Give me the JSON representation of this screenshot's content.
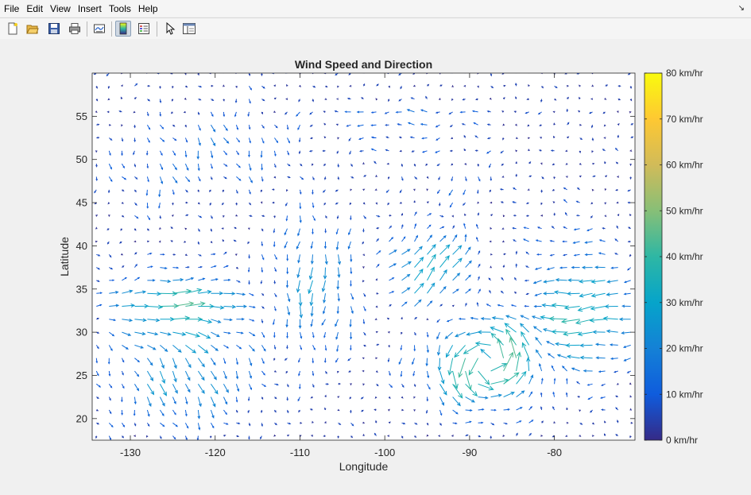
{
  "menubar": {
    "items": [
      "File",
      "Edit",
      "View",
      "Insert",
      "Tools",
      "Help"
    ],
    "dock_icon": "undock-arrow-icon"
  },
  "toolbar": {
    "buttons": [
      {
        "name": "new-figure-button",
        "icon": "new-file-icon"
      },
      {
        "name": "open-file-button",
        "icon": "folder-open-icon"
      },
      {
        "name": "save-figure-button",
        "icon": "save-icon"
      },
      {
        "name": "print-figure-button",
        "icon": "print-icon"
      },
      {
        "name": "link-plot-button",
        "icon": "link-plot-icon"
      },
      {
        "name": "insert-colorbar-button",
        "icon": "colorbar-icon"
      },
      {
        "name": "insert-legend-button",
        "icon": "legend-icon"
      },
      {
        "name": "edit-plot-button",
        "icon": "pointer-icon"
      },
      {
        "name": "property-inspector-button",
        "icon": "property-inspector-icon"
      }
    ]
  },
  "chart_data": {
    "type": "quiver",
    "title": "Wind Speed and Direction",
    "xlabel": "Longitude",
    "ylabel": "Latitude",
    "xlim": [
      -134.5,
      -70.5
    ],
    "ylim": [
      17.5,
      60
    ],
    "xticks": [
      -130,
      -120,
      -110,
      -100,
      -90,
      -80
    ],
    "yticks": [
      20,
      25,
      30,
      35,
      40,
      45,
      50,
      55
    ],
    "grid": false,
    "colorbar": {
      "min": 0,
      "max": 80,
      "unit": "km/hr",
      "ticks": [
        0,
        10,
        20,
        30,
        40,
        50,
        60,
        70,
        80
      ],
      "tick_labels": [
        "0 km/hr",
        "10 km/hr",
        "20 km/hr",
        "30 km/hr",
        "40 km/hr",
        "50 km/hr",
        "60 km/hr",
        "70 km/hr",
        "80 km/hr"
      ],
      "colormap": "parula",
      "colors": [
        "#352a87",
        "#0f5cdd",
        "#1481d6",
        "#06a4ca",
        "#2eb7a4",
        "#87bf77",
        "#d1bb59",
        "#fec832",
        "#f9fb0e"
      ]
    },
    "grid_spacing_deg": 1.5,
    "arrow_scale_deg_per_kmh": 0.055,
    "wind_field_features": [
      {
        "feature": "northerly jet",
        "lon": -118,
        "lat": 52,
        "speed_kmh": 14,
        "direction": "northwest-to-southeast"
      },
      {
        "feature": "westerly band",
        "lon": -98,
        "lat": 54,
        "speed_kmh": 12,
        "direction": "westward"
      },
      {
        "feature": "southerly flow",
        "lon": -108,
        "lat": 36,
        "speed_kmh": 25,
        "direction": "south-southwest"
      },
      {
        "feature": "southwesterly jet",
        "lon": -94,
        "lat": 36,
        "speed_kmh": 35,
        "direction": "northeast"
      },
      {
        "feature": "gulf circulation",
        "lon": -88,
        "lat": 26,
        "speed_kmh": 55,
        "direction": "cyclonic"
      },
      {
        "feature": "pacific easterly",
        "lon": -125,
        "lat": 33,
        "speed_kmh": 40,
        "direction": "eastward"
      },
      {
        "feature": "atlantic easterly",
        "lon": -76,
        "lat": 30,
        "speed_kmh": 38,
        "direction": "westward"
      }
    ]
  }
}
